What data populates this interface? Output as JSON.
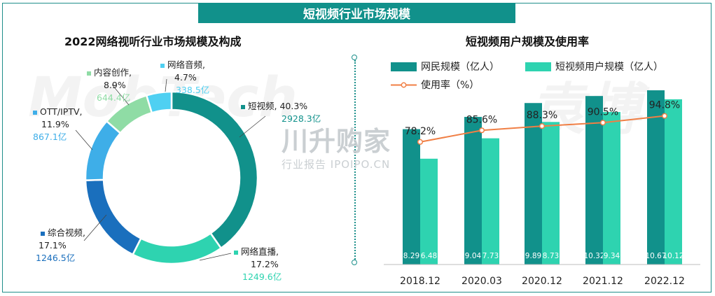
{
  "banner_title": "短视频行业市场规模",
  "colors": {
    "teal_dark": "#11918b",
    "teal_light": "#2ed3b0",
    "usage_line": "#f07f45",
    "blue_dark": "#1a6fbd",
    "blue_light": "#3eaee8",
    "green_light": "#8fdca5",
    "cyan": "#4fd0f2"
  },
  "watermark": {
    "ghost_left": "MobTech",
    "ghost_right": "袁博",
    "brand": "川升购家",
    "brand_sub": "行业报告 IPOIPO.CN"
  },
  "chart_data": [
    {
      "type": "pie",
      "title": "2022网络视听行业市场规模及构成",
      "slices": [
        {
          "name": "短视频,",
          "percent": 40.3,
          "percent_label": "40.3%",
          "amount": "2928.3亿",
          "color": "#11918b"
        },
        {
          "name": "网络直播,",
          "percent": 17.2,
          "percent_label": "17.2%",
          "amount": "1249.6亿",
          "color": "#2ed3b0"
        },
        {
          "name": "综合视频,",
          "percent": 17.1,
          "percent_label": "17.1%",
          "amount": "1246.5亿",
          "color": "#1a6fbd"
        },
        {
          "name": "OTT/IPTV,",
          "percent": 11.9,
          "percent_label": "11.9%",
          "amount": "867.1亿",
          "color": "#3eaee8"
        },
        {
          "name": "内容创作,",
          "percent": 8.9,
          "percent_label": "8.9%",
          "amount": "644.4亿",
          "color": "#8fdca5"
        },
        {
          "name": "网络音频,",
          "percent": 4.7,
          "percent_label": "4.7%",
          "amount": "338.5亿",
          "color": "#4fd0f2"
        }
      ]
    },
    {
      "type": "bar",
      "title": "短视频用户规模及使用率",
      "categories": [
        "2018.12",
        "2020.03",
        "2020.12",
        "2021.12",
        "2022.12"
      ],
      "series": [
        {
          "name": "网民规模（亿人）",
          "values": [
            8.29,
            9.04,
            9.89,
            10.32,
            10.67
          ],
          "value_labels": [
            "8.29",
            "9.04",
            "9.89",
            "10.32",
            "10.67"
          ],
          "color": "#11918b"
        },
        {
          "name": "短视频用户规模（亿人）",
          "values": [
            6.48,
            7.73,
            8.73,
            9.34,
            10.12
          ],
          "value_labels": [
            "6.48",
            "7.73",
            "8.73",
            "9.34",
            "10.12"
          ],
          "color": "#2ed3b0"
        }
      ],
      "line_series": {
        "name": "使用率（%）",
        "values": [
          78.2,
          85.6,
          88.3,
          90.5,
          94.8
        ],
        "value_labels": [
          "78.2%",
          "85.6%",
          "88.3%",
          "90.5%",
          "94.8%"
        ],
        "color": "#f07f45"
      },
      "ylim": [
        0,
        12
      ],
      "line_ylim": [
        0,
        125
      ],
      "legend": "top"
    }
  ]
}
